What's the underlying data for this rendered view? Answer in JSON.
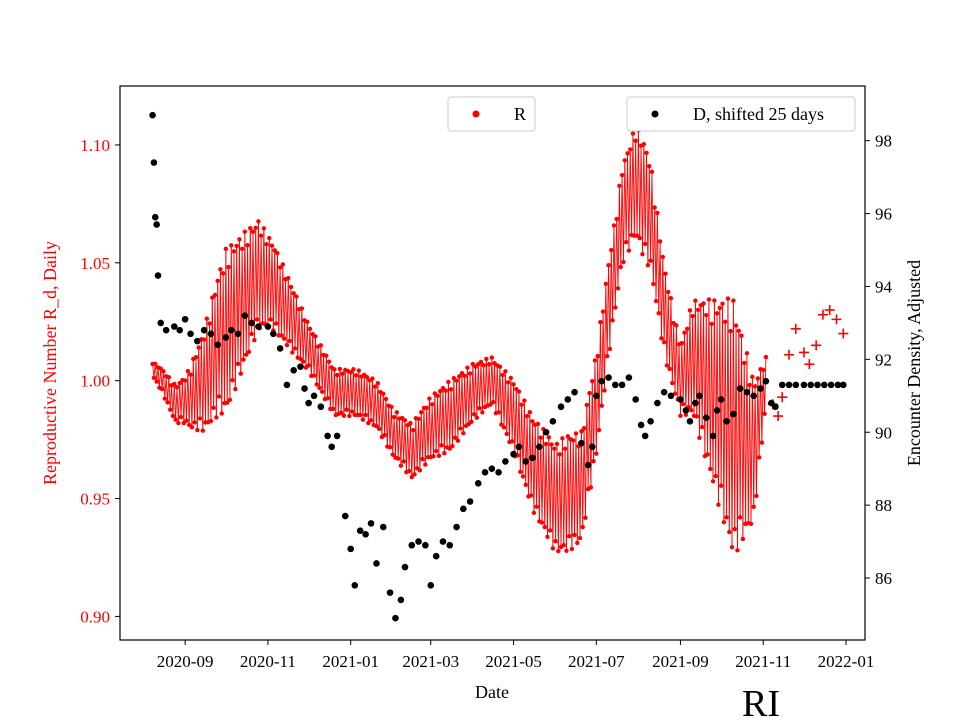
{
  "chart_data": {
    "type": "scatter",
    "state_label": "RI",
    "xlabel": "Date",
    "ylabel_left": "Reproductive Number R_d, Daily",
    "ylabel_right": "Encounter Density, Adjusted",
    "x_range": [
      "2020-07-15",
      "2022-01-15"
    ],
    "y_left_range": [
      0.89,
      1.125
    ],
    "y_right_range": [
      84.3,
      99.5
    ],
    "x_ticks": [
      "2020-09",
      "2020-11",
      "2021-01",
      "2021-03",
      "2021-05",
      "2021-07",
      "2021-09",
      "2021-11",
      "2022-01"
    ],
    "y_left_ticks": [
      "0.90",
      "0.95",
      "1.00",
      "1.05",
      "1.10"
    ],
    "y_right_ticks": [
      "86",
      "88",
      "90",
      "92",
      "94",
      "96",
      "98"
    ],
    "colors": {
      "R": "#ff0000",
      "D": "#000000"
    },
    "legends": [
      {
        "label": "R",
        "color": "#ff0000",
        "placement": "top-center"
      },
      {
        "label": "D, shifted 25 days",
        "color": "#000000",
        "placement": "top-right"
      }
    ],
    "series": [
      {
        "name": "R",
        "axis": "left",
        "color": "#ff0000",
        "center_points": [
          [
            "2020-08-08",
            1.005
          ],
          [
            "2020-08-15",
            1.0
          ],
          [
            "2020-08-25",
            0.99
          ],
          [
            "2020-09-05",
            0.993
          ],
          [
            "2020-09-15",
            1.0
          ],
          [
            "2020-09-25",
            1.015
          ],
          [
            "2020-10-10",
            1.03
          ],
          [
            "2020-10-25",
            1.045
          ],
          [
            "2020-11-05",
            1.04
          ],
          [
            "2020-11-20",
            1.025
          ],
          [
            "2020-12-05",
            1.01
          ],
          [
            "2020-12-20",
            0.995
          ],
          [
            "2021-01-05",
            0.995
          ],
          [
            "2021-01-20",
            0.99
          ],
          [
            "2021-02-01",
            0.978
          ],
          [
            "2021-02-15",
            0.97
          ],
          [
            "2021-03-01",
            0.98
          ],
          [
            "2021-03-15",
            0.985
          ],
          [
            "2021-04-01",
            0.995
          ],
          [
            "2021-04-15",
            1.0
          ],
          [
            "2021-05-01",
            0.985
          ],
          [
            "2021-05-15",
            0.965
          ],
          [
            "2021-06-01",
            0.95
          ],
          [
            "2021-06-20",
            0.955
          ],
          [
            "2021-07-01",
            0.99
          ],
          [
            "2021-07-10",
            1.03
          ],
          [
            "2021-07-20",
            1.07
          ],
          [
            "2021-07-30",
            1.085
          ],
          [
            "2021-08-10",
            1.07
          ],
          [
            "2021-08-20",
            1.03
          ],
          [
            "2021-09-01",
            1.0
          ],
          [
            "2021-09-10",
            1.01
          ],
          [
            "2021-09-25",
            0.995
          ],
          [
            "2021-10-10",
            0.98
          ],
          [
            "2021-10-25",
            0.97
          ],
          [
            "2021-11-03",
            1.0
          ]
        ],
        "oscillation_amplitude": [
          [
            "2020-08-08",
            0.003
          ],
          [
            "2020-09-01",
            0.01
          ],
          [
            "2020-10-01",
            0.035
          ],
          [
            "2020-11-01",
            0.02
          ],
          [
            "2020-12-01",
            0.01
          ],
          [
            "2021-02-01",
            0.01
          ],
          [
            "2021-03-15",
            0.015
          ],
          [
            "2021-04-15",
            0.01
          ],
          [
            "2021-05-15",
            0.02
          ],
          [
            "2021-06-10",
            0.025
          ],
          [
            "2021-07-15",
            0.02
          ],
          [
            "2021-08-05",
            0.025
          ],
          [
            "2021-09-01",
            0.015
          ],
          [
            "2021-10-10",
            0.055
          ],
          [
            "2021-10-25",
            0.03
          ],
          [
            "2021-11-03",
            0.01
          ]
        ],
        "late_markers": [
          [
            "2021-11-08",
            0.99
          ],
          [
            "2021-11-12",
            0.985
          ],
          [
            "2021-11-15",
            0.993
          ],
          [
            "2021-11-20",
            1.011
          ],
          [
            "2021-11-25",
            1.022
          ],
          [
            "2021-12-01",
            1.012
          ],
          [
            "2021-12-05",
            1.007
          ],
          [
            "2021-12-10",
            1.015
          ],
          [
            "2021-12-15",
            1.028
          ],
          [
            "2021-12-20",
            1.03
          ],
          [
            "2021-12-25",
            1.026
          ],
          [
            "2021-12-30",
            1.02
          ]
        ]
      },
      {
        "name": "D, shifted 25 days",
        "axis": "right",
        "color": "#000000",
        "points": [
          [
            "2020-08-08",
            98.7
          ],
          [
            "2020-08-09",
            97.4
          ],
          [
            "2020-08-10",
            95.9
          ],
          [
            "2020-08-11",
            95.7
          ],
          [
            "2020-08-12",
            94.3
          ],
          [
            "2020-08-14",
            93.0
          ],
          [
            "2020-08-18",
            92.8
          ],
          [
            "2020-08-24",
            92.9
          ],
          [
            "2020-08-28",
            92.8
          ],
          [
            "2020-09-01",
            93.1
          ],
          [
            "2020-09-05",
            92.7
          ],
          [
            "2020-09-10",
            92.5
          ],
          [
            "2020-09-15",
            92.8
          ],
          [
            "2020-09-20",
            92.7
          ],
          [
            "2020-09-25",
            92.4
          ],
          [
            "2020-10-01",
            92.6
          ],
          [
            "2020-10-05",
            92.8
          ],
          [
            "2020-10-10",
            92.7
          ],
          [
            "2020-10-15",
            93.2
          ],
          [
            "2020-10-20",
            93.0
          ],
          [
            "2020-10-25",
            92.9
          ],
          [
            "2020-11-01",
            92.9
          ],
          [
            "2020-11-05",
            92.7
          ],
          [
            "2020-11-10",
            92.3
          ],
          [
            "2020-11-15",
            91.3
          ],
          [
            "2020-11-20",
            91.7
          ],
          [
            "2020-11-25",
            91.8
          ],
          [
            "2020-11-28",
            91.2
          ],
          [
            "2020-12-01",
            90.8
          ],
          [
            "2020-12-05",
            91.0
          ],
          [
            "2020-12-10",
            90.7
          ],
          [
            "2020-12-15",
            89.9
          ],
          [
            "2020-12-18",
            89.6
          ],
          [
            "2020-12-22",
            89.9
          ],
          [
            "2020-12-28",
            87.7
          ],
          [
            "2021-01-01",
            86.8
          ],
          [
            "2021-01-04",
            85.8
          ],
          [
            "2021-01-08",
            87.3
          ],
          [
            "2021-01-12",
            87.2
          ],
          [
            "2021-01-16",
            87.5
          ],
          [
            "2021-01-20",
            86.4
          ],
          [
            "2021-01-25",
            87.4
          ],
          [
            "2021-01-30",
            85.6
          ],
          [
            "2021-02-03",
            84.9
          ],
          [
            "2021-02-07",
            85.4
          ],
          [
            "2021-02-10",
            86.3
          ],
          [
            "2021-02-15",
            86.9
          ],
          [
            "2021-02-20",
            87.0
          ],
          [
            "2021-02-25",
            86.9
          ],
          [
            "2021-03-01",
            85.8
          ],
          [
            "2021-03-05",
            86.6
          ],
          [
            "2021-03-10",
            87.0
          ],
          [
            "2021-03-15",
            86.9
          ],
          [
            "2021-03-20",
            87.4
          ],
          [
            "2021-03-25",
            87.9
          ],
          [
            "2021-03-30",
            88.1
          ],
          [
            "2021-04-05",
            88.6
          ],
          [
            "2021-04-10",
            88.9
          ],
          [
            "2021-04-15",
            89.0
          ],
          [
            "2021-04-20",
            88.9
          ],
          [
            "2021-04-25",
            89.2
          ],
          [
            "2021-05-01",
            89.4
          ],
          [
            "2021-05-05",
            89.6
          ],
          [
            "2021-05-10",
            89.2
          ],
          [
            "2021-05-15",
            89.3
          ],
          [
            "2021-05-20",
            89.6
          ],
          [
            "2021-05-25",
            90.0
          ],
          [
            "2021-05-30",
            90.3
          ],
          [
            "2021-06-05",
            90.7
          ],
          [
            "2021-06-10",
            90.9
          ],
          [
            "2021-06-15",
            91.1
          ],
          [
            "2021-06-20",
            89.7
          ],
          [
            "2021-06-25",
            89.1
          ],
          [
            "2021-06-28",
            89.6
          ],
          [
            "2021-07-01",
            91.0
          ],
          [
            "2021-07-05",
            91.4
          ],
          [
            "2021-07-10",
            91.5
          ],
          [
            "2021-07-15",
            91.3
          ],
          [
            "2021-07-20",
            91.3
          ],
          [
            "2021-07-25",
            91.5
          ],
          [
            "2021-07-30",
            90.9
          ],
          [
            "2021-08-03",
            90.2
          ],
          [
            "2021-08-06",
            89.9
          ],
          [
            "2021-08-10",
            90.3
          ],
          [
            "2021-08-15",
            90.8
          ],
          [
            "2021-08-20",
            91.1
          ],
          [
            "2021-08-25",
            91.0
          ],
          [
            "2021-09-01",
            90.9
          ],
          [
            "2021-09-05",
            90.6
          ],
          [
            "2021-09-08",
            90.3
          ],
          [
            "2021-09-12",
            90.8
          ],
          [
            "2021-09-15",
            91.0
          ],
          [
            "2021-09-20",
            90.4
          ],
          [
            "2021-09-25",
            89.9
          ],
          [
            "2021-09-28",
            90.6
          ],
          [
            "2021-10-01",
            90.9
          ],
          [
            "2021-10-05",
            90.3
          ],
          [
            "2021-10-10",
            90.5
          ],
          [
            "2021-10-15",
            91.2
          ],
          [
            "2021-10-20",
            91.1
          ],
          [
            "2021-10-25",
            91.0
          ],
          [
            "2021-10-30",
            91.2
          ],
          [
            "2021-11-03",
            91.4
          ],
          [
            "2021-11-07",
            90.8
          ],
          [
            "2021-11-10",
            90.7
          ],
          [
            "2021-11-15",
            91.3
          ],
          [
            "2021-11-20",
            91.3
          ],
          [
            "2021-11-25",
            91.3
          ],
          [
            "2021-12-01",
            91.3
          ],
          [
            "2021-12-06",
            91.3
          ],
          [
            "2021-12-11",
            91.3
          ],
          [
            "2021-12-16",
            91.3
          ],
          [
            "2021-12-21",
            91.3
          ],
          [
            "2021-12-26",
            91.3
          ],
          [
            "2021-12-30",
            91.3
          ]
        ]
      }
    ]
  }
}
